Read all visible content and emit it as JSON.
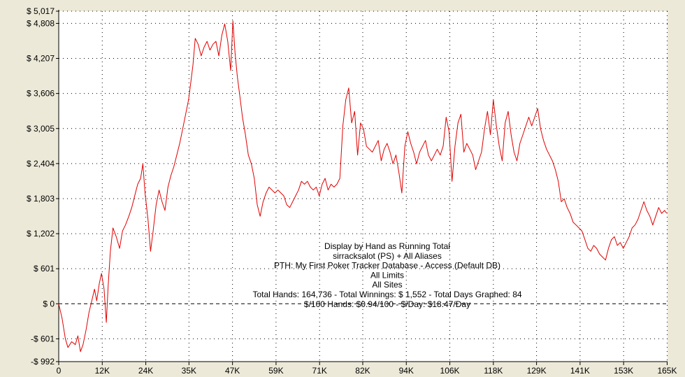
{
  "chart_data": {
    "type": "line",
    "title": "",
    "xlabel": "",
    "ylabel": "",
    "xlim": [
      0,
      165000
    ],
    "ylim": [
      -992,
      5017
    ],
    "grid": true,
    "legend": "none",
    "x_ticks": [
      {
        "value": 0,
        "label": "0"
      },
      {
        "value": 11800,
        "label": "12K"
      },
      {
        "value": 23600,
        "label": "24K"
      },
      {
        "value": 35300,
        "label": "35K"
      },
      {
        "value": 47100,
        "label": "47K"
      },
      {
        "value": 58900,
        "label": "59K"
      },
      {
        "value": 70700,
        "label": "71K"
      },
      {
        "value": 82400,
        "label": "82K"
      },
      {
        "value": 94200,
        "label": "94K"
      },
      {
        "value": 106000,
        "label": "106K"
      },
      {
        "value": 117800,
        "label": "118K"
      },
      {
        "value": 129500,
        "label": "129K"
      },
      {
        "value": 141300,
        "label": "141K"
      },
      {
        "value": 153100,
        "label": "153K"
      },
      {
        "value": 164900,
        "label": "165K"
      }
    ],
    "y_ticks": [
      {
        "value": 5017,
        "label": "$ 5,017"
      },
      {
        "value": 4808,
        "label": "$ 4,808"
      },
      {
        "value": 4207,
        "label": "$ 4,207"
      },
      {
        "value": 3606,
        "label": "$ 3,606"
      },
      {
        "value": 3005,
        "label": "$ 3,005"
      },
      {
        "value": 2404,
        "label": "$ 2,404"
      },
      {
        "value": 1803,
        "label": "$ 1,803"
      },
      {
        "value": 1202,
        "label": "$ 1,202"
      },
      {
        "value": 601,
        "label": "$ 601"
      },
      {
        "value": 0,
        "label": "$ 0"
      },
      {
        "value": -601,
        "label": "-$ 601"
      },
      {
        "value": -992,
        "label": "-$ 992"
      }
    ],
    "series": [
      {
        "name": "",
        "color": "#e00000",
        "points": [
          [
            0,
            0
          ],
          [
            900,
            -250
          ],
          [
            1800,
            -600
          ],
          [
            2500,
            -750
          ],
          [
            3500,
            -650
          ],
          [
            4500,
            -700
          ],
          [
            5200,
            -550
          ],
          [
            5900,
            -820
          ],
          [
            6600,
            -700
          ],
          [
            7400,
            -450
          ],
          [
            8200,
            -150
          ],
          [
            9000,
            60
          ],
          [
            9700,
            250
          ],
          [
            10300,
            50
          ],
          [
            11000,
            350
          ],
          [
            11600,
            520
          ],
          [
            12300,
            250
          ],
          [
            12900,
            -320
          ],
          [
            13400,
            300
          ],
          [
            14000,
            900
          ],
          [
            14700,
            1300
          ],
          [
            15600,
            1150
          ],
          [
            16500,
            950
          ],
          [
            17300,
            1250
          ],
          [
            18100,
            1350
          ],
          [
            19000,
            1500
          ],
          [
            19800,
            1650
          ],
          [
            20600,
            1850
          ],
          [
            21400,
            2050
          ],
          [
            22200,
            2150
          ],
          [
            22800,
            2400
          ],
          [
            23400,
            1900
          ],
          [
            24200,
            1450
          ],
          [
            24900,
            900
          ],
          [
            25600,
            1250
          ],
          [
            26400,
            1700
          ],
          [
            27200,
            1950
          ],
          [
            28000,
            1750
          ],
          [
            28800,
            1600
          ],
          [
            29600,
            2000
          ],
          [
            30400,
            2200
          ],
          [
            31200,
            2350
          ],
          [
            32000,
            2550
          ],
          [
            32800,
            2750
          ],
          [
            33600,
            3000
          ],
          [
            34400,
            3250
          ],
          [
            35200,
            3500
          ],
          [
            35800,
            3800
          ],
          [
            36400,
            4100
          ],
          [
            37000,
            4550
          ],
          [
            37800,
            4450
          ],
          [
            38600,
            4250
          ],
          [
            39400,
            4400
          ],
          [
            40200,
            4500
          ],
          [
            41000,
            4350
          ],
          [
            41800,
            4450
          ],
          [
            42600,
            4500
          ],
          [
            43400,
            4250
          ],
          [
            44200,
            4600
          ],
          [
            45000,
            4800
          ],
          [
            45800,
            4500
          ],
          [
            46600,
            4000
          ],
          [
            47200,
            4850
          ],
          [
            47800,
            4300
          ],
          [
            48400,
            3900
          ],
          [
            49000,
            3600
          ],
          [
            49800,
            3200
          ],
          [
            50600,
            2900
          ],
          [
            51400,
            2550
          ],
          [
            52200,
            2400
          ],
          [
            53000,
            2150
          ],
          [
            53800,
            1700
          ],
          [
            54600,
            1500
          ],
          [
            55400,
            1750
          ],
          [
            56200,
            1900
          ],
          [
            57000,
            2000
          ],
          [
            57800,
            1950
          ],
          [
            58600,
            1900
          ],
          [
            59400,
            1950
          ],
          [
            60200,
            1900
          ],
          [
            61000,
            1850
          ],
          [
            61800,
            1700
          ],
          [
            62600,
            1650
          ],
          [
            63400,
            1750
          ],
          [
            64200,
            1850
          ],
          [
            65000,
            1950
          ],
          [
            65800,
            2100
          ],
          [
            66600,
            2050
          ],
          [
            67400,
            2100
          ],
          [
            68200,
            2000
          ],
          [
            69000,
            1950
          ],
          [
            69800,
            2000
          ],
          [
            70600,
            1850
          ],
          [
            71400,
            2050
          ],
          [
            72200,
            2150
          ],
          [
            73000,
            1950
          ],
          [
            73800,
            2050
          ],
          [
            74600,
            2000
          ],
          [
            75400,
            2050
          ],
          [
            76200,
            2150
          ],
          [
            77000,
            3050
          ],
          [
            77800,
            3500
          ],
          [
            78600,
            3700
          ],
          [
            79400,
            3100
          ],
          [
            80200,
            3300
          ],
          [
            81000,
            2550
          ],
          [
            81800,
            3100
          ],
          [
            82600,
            3000
          ],
          [
            83400,
            2700
          ],
          [
            84200,
            2650
          ],
          [
            85000,
            2600
          ],
          [
            85800,
            2700
          ],
          [
            86600,
            2800
          ],
          [
            87400,
            2450
          ],
          [
            88200,
            2650
          ],
          [
            89000,
            2750
          ],
          [
            89800,
            2600
          ],
          [
            90600,
            2400
          ],
          [
            91400,
            2550
          ],
          [
            92200,
            2250
          ],
          [
            93000,
            1900
          ],
          [
            93800,
            2700
          ],
          [
            94600,
            2950
          ],
          [
            95400,
            2750
          ],
          [
            96200,
            2600
          ],
          [
            97000,
            2400
          ],
          [
            97800,
            2600
          ],
          [
            98600,
            2700
          ],
          [
            99400,
            2800
          ],
          [
            100200,
            2550
          ],
          [
            101000,
            2450
          ],
          [
            101800,
            2550
          ],
          [
            102600,
            2650
          ],
          [
            103400,
            2550
          ],
          [
            104200,
            2700
          ],
          [
            105000,
            3200
          ],
          [
            105800,
            2950
          ],
          [
            106600,
            2100
          ],
          [
            107400,
            2700
          ],
          [
            108200,
            3100
          ],
          [
            109000,
            3250
          ],
          [
            109800,
            2600
          ],
          [
            110600,
            2750
          ],
          [
            111400,
            2650
          ],
          [
            112200,
            2550
          ],
          [
            113000,
            2300
          ],
          [
            113800,
            2450
          ],
          [
            114600,
            2600
          ],
          [
            115400,
            3000
          ],
          [
            116200,
            3300
          ],
          [
            117000,
            2900
          ],
          [
            117800,
            3500
          ],
          [
            118600,
            3050
          ],
          [
            119400,
            2700
          ],
          [
            120200,
            2450
          ],
          [
            121000,
            3100
          ],
          [
            121800,
            3300
          ],
          [
            122600,
            2900
          ],
          [
            123400,
            2600
          ],
          [
            124200,
            2450
          ],
          [
            125000,
            2750
          ],
          [
            125800,
            2900
          ],
          [
            126600,
            3050
          ],
          [
            127400,
            3200
          ],
          [
            128200,
            3050
          ],
          [
            129000,
            3200
          ],
          [
            129800,
            3350
          ],
          [
            130600,
            3000
          ],
          [
            131400,
            2800
          ],
          [
            132200,
            2650
          ],
          [
            133000,
            2550
          ],
          [
            133800,
            2450
          ],
          [
            134600,
            2300
          ],
          [
            135400,
            2100
          ],
          [
            136200,
            1750
          ],
          [
            137000,
            1800
          ],
          [
            137800,
            1650
          ],
          [
            138600,
            1550
          ],
          [
            139400,
            1400
          ],
          [
            140200,
            1350
          ],
          [
            141000,
            1300
          ],
          [
            141800,
            1250
          ],
          [
            142600,
            1100
          ],
          [
            143400,
            950
          ],
          [
            144200,
            900
          ],
          [
            145000,
            1000
          ],
          [
            145800,
            950
          ],
          [
            146600,
            850
          ],
          [
            147400,
            800
          ],
          [
            148200,
            750
          ],
          [
            149000,
            950
          ],
          [
            149800,
            1100
          ],
          [
            150600,
            1150
          ],
          [
            151400,
            1000
          ],
          [
            152200,
            1050
          ],
          [
            153000,
            950
          ],
          [
            153800,
            1050
          ],
          [
            154600,
            1150
          ],
          [
            155400,
            1300
          ],
          [
            156200,
            1350
          ],
          [
            157000,
            1450
          ],
          [
            157800,
            1600
          ],
          [
            158600,
            1750
          ],
          [
            159400,
            1600
          ],
          [
            160200,
            1500
          ],
          [
            161000,
            1350
          ],
          [
            161800,
            1500
          ],
          [
            162600,
            1650
          ],
          [
            163400,
            1550
          ],
          [
            164200,
            1600
          ],
          [
            164736,
            1552
          ]
        ]
      }
    ],
    "annotations": [
      "Display by Hand as Running Total",
      "sirracksalot (PS) + All Aliases",
      "PTH: My First Poker Tracker Database - Access (Default DB)",
      "All Limits",
      "All Sites",
      "Total Hands: 164,736 - Total Winnings: $ 1,552 - Total Days Graphed: 84",
      "$/100 Hands: $0.94/100 - $/Day: $18.47/Day"
    ],
    "colors": {
      "background": "#ece9d8",
      "plot_background": "#ffffff",
      "line": "#e00000",
      "grid": "#000000"
    }
  }
}
